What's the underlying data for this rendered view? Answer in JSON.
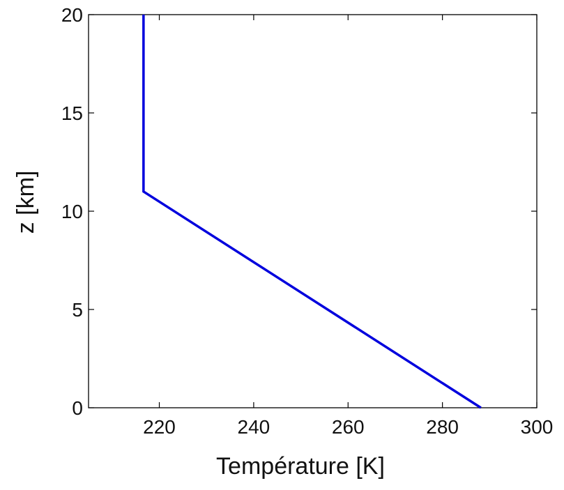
{
  "chart_data": {
    "type": "line",
    "title": "",
    "xlabel": "Température [K]",
    "ylabel": "z [km]",
    "xlim": [
      205,
      300
    ],
    "ylim": [
      0,
      20
    ],
    "xticks": [
      220,
      240,
      260,
      280,
      300
    ],
    "yticks": [
      0,
      5,
      10,
      15,
      20
    ],
    "grid": false,
    "legend": "none",
    "series": [
      {
        "color": "#0000dd",
        "x": [
          288.15,
          216.65,
          216.65
        ],
        "y": [
          0,
          11,
          20
        ]
      }
    ]
  }
}
